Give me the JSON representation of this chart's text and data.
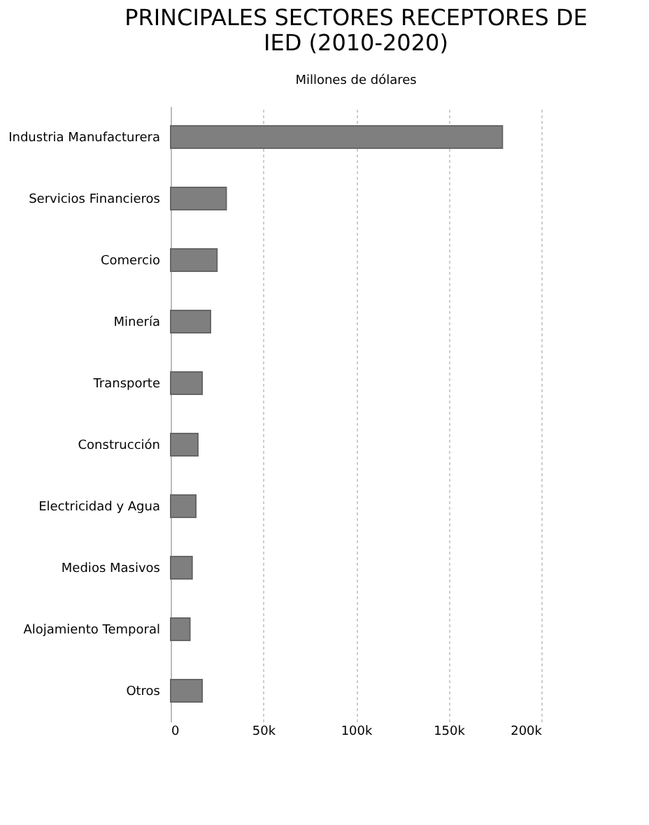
{
  "chart_data": {
    "type": "bar",
    "orientation": "horizontal",
    "title": [
      "PRINCIPALES SECTORES RECEPTORES DE",
      "IED (2010-2020)"
    ],
    "subtitle": "Millones de dólares",
    "categories": [
      "Industria Manufacturera",
      "Servicios Financieros",
      "Comercio",
      "Minería",
      "Transporte",
      "Construcción",
      "Electricidad y Agua",
      "Medios Masivos",
      "Alojamiento Temporal",
      "Otros"
    ],
    "values": [
      179000,
      30000,
      25000,
      21500,
      17000,
      14700,
      13600,
      11600,
      10400,
      17000
    ],
    "color": "#7f7f7f",
    "xlim": [
      0,
      200000
    ],
    "xticks": [
      0,
      {
        "value": 50000,
        "label": "50k"
      },
      {
        "value": 100000,
        "label": "100k"
      },
      {
        "value": 150000,
        "label": "150k"
      },
      {
        "value": 200000,
        "label": "200k"
      }
    ],
    "grid": "x"
  }
}
